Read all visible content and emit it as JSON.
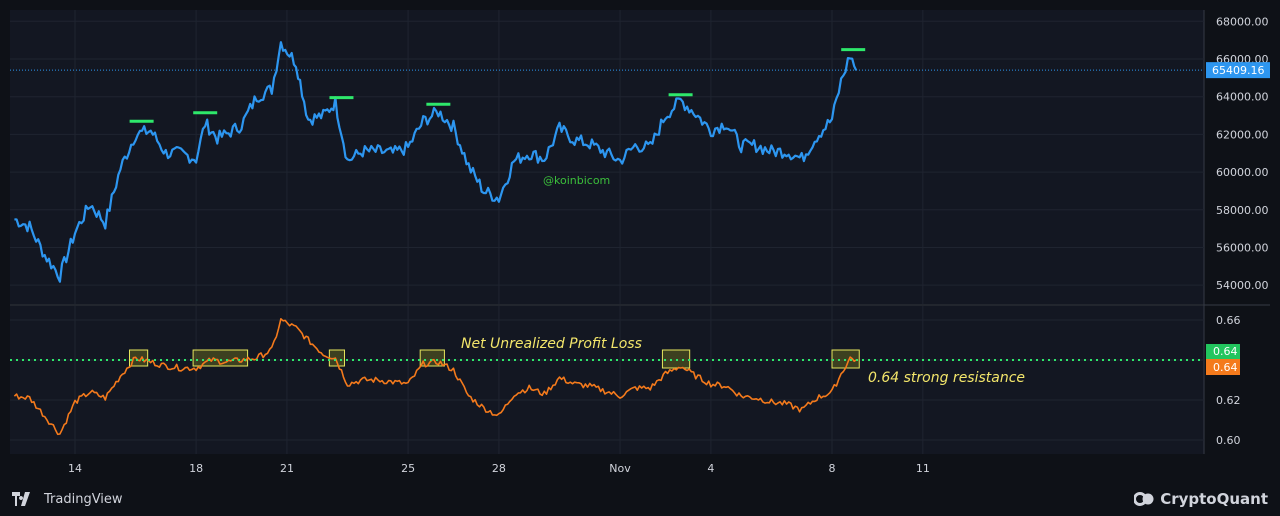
{
  "chart_data": [
    {
      "type": "line",
      "panel": "price",
      "watermark": "@koinbicom",
      "x_ticks": [
        "14",
        "18",
        "21",
        "25",
        "28",
        "Nov",
        "4",
        "8",
        "11"
      ],
      "y_ticks": [
        "68000.00",
        "66000.00",
        "64000.00",
        "62000.00",
        "60000.00",
        "58000.00",
        "56000.00",
        "54000.00"
      ],
      "ylim": [
        53000,
        68600
      ],
      "last_value": 65409.16,
      "last_value_label": "65409.16",
      "series": [
        {
          "color": "#2d96f0",
          "points": [
            [
              "Oct 12",
              57500
            ],
            [
              "Oct 12.5",
              57100
            ],
            [
              "Oct 13",
              55600
            ],
            [
              "Oct 13.5",
              54500
            ],
            [
              "Oct 14",
              56800
            ],
            [
              "Oct 14.5",
              58300
            ],
            [
              "Oct 15",
              57300
            ],
            [
              "Oct 15.5",
              60200
            ],
            [
              "Oct 16",
              62000
            ],
            [
              "Oct 16.5",
              62200
            ],
            [
              "Oct 17",
              61000
            ],
            [
              "Oct 17.5",
              61000
            ],
            [
              "Oct 18",
              60700
            ],
            [
              "Oct 18.3",
              62600
            ],
            [
              "Oct 18.7",
              61800
            ],
            [
              "Oct 19",
              62000
            ],
            [
              "Oct 19.5",
              62500
            ],
            [
              "Oct 20",
              64000
            ],
            [
              "Oct 20.5",
              64400
            ],
            [
              "Oct 20.8",
              66900
            ],
            [
              "Oct 21.3",
              65800
            ],
            [
              "Oct 21.7",
              62800
            ],
            [
              "Oct 22.2",
              63000
            ],
            [
              "Oct 22.6",
              63700
            ],
            [
              "Oct 23",
              60600
            ],
            [
              "Oct 23.5",
              61100
            ],
            [
              "Oct 24",
              61100
            ],
            [
              "Oct 24.5",
              61000
            ],
            [
              "Oct 25",
              61300
            ],
            [
              "Oct 25.5",
              62700
            ],
            [
              "Oct 26",
              63200
            ],
            [
              "Oct 26.5",
              62400
            ],
            [
              "Oct 27",
              60300
            ],
            [
              "Oct 27.5",
              59000
            ],
            [
              "Oct 28",
              58600
            ],
            [
              "Oct 28.5",
              60600
            ],
            [
              "Oct 29",
              61000
            ],
            [
              "Oct 29.5",
              60700
            ],
            [
              "Oct 30",
              62300
            ],
            [
              "Oct 30.5",
              61700
            ],
            [
              "Oct 31",
              61500
            ],
            [
              "Nov 1",
              60600
            ],
            [
              "Nov 1.5",
              61400
            ],
            [
              "Nov 2",
              61300
            ],
            [
              "Nov 2.5",
              63000
            ],
            [
              "Nov 3",
              63800
            ],
            [
              "Nov 3.5",
              63100
            ],
            [
              "Nov 4",
              62200
            ],
            [
              "Nov 4.5",
              62600
            ],
            [
              "Nov 5",
              61400
            ],
            [
              "Nov 5.5",
              61400
            ],
            [
              "Nov 6",
              61100
            ],
            [
              "Nov 6.5",
              61100
            ],
            [
              "Nov 7",
              60700
            ],
            [
              "Nov 7.5",
              61900
            ],
            [
              "Nov 8",
              62800
            ],
            [
              "Nov 8.3",
              64800
            ],
            [
              "Nov 8.6",
              66200
            ],
            [
              "Nov 8.8",
              65400
            ]
          ]
        }
      ],
      "resistance_marks": [
        {
          "x": "Oct 16.2",
          "y": 62700,
          "color": "#2ee86b"
        },
        {
          "x": "Oct 18.3",
          "y": 63150,
          "color": "#2ee86b"
        },
        {
          "x": "Oct 22.8",
          "y": 63950,
          "color": "#2ee86b"
        },
        {
          "x": "Oct 26",
          "y": 63600,
          "color": "#2ee86b"
        },
        {
          "x": "Nov 3",
          "y": 64100,
          "color": "#2ee86b"
        },
        {
          "x": "Nov 8.7",
          "y": 66500,
          "color": "#2ee86b"
        }
      ]
    },
    {
      "type": "line",
      "panel": "nupl",
      "title": "Net Unrealized Profit Loss",
      "annotation": "0.64 strong resistance",
      "y_ticks": [
        "0.66",
        "0.64",
        "0.62",
        "0.60"
      ],
      "ylim": [
        0.593,
        0.667
      ],
      "resistance_level": 0.64,
      "resistance_label": "0.64",
      "last_value_label": "0.64",
      "series": [
        {
          "color": "#f47a1c",
          "points": [
            [
              "Oct 12",
              0.622
            ],
            [
              "Oct 12.5",
              0.621
            ],
            [
              "Oct 13",
              0.612
            ],
            [
              "Oct 13.5",
              0.603
            ],
            [
              "Oct 14",
              0.619
            ],
            [
              "Oct 14.5",
              0.624
            ],
            [
              "Oct 15",
              0.621
            ],
            [
              "Oct 15.5",
              0.632
            ],
            [
              "Oct 16",
              0.641
            ],
            [
              "Oct 16.5",
              0.639
            ],
            [
              "Oct 17",
              0.637
            ],
            [
              "Oct 17.5",
              0.636
            ],
            [
              "Oct 18",
              0.636
            ],
            [
              "Oct 18.5",
              0.64
            ],
            [
              "Oct 19",
              0.639
            ],
            [
              "Oct 19.5",
              0.64
            ],
            [
              "Oct 20",
              0.641
            ],
            [
              "Oct 20.5",
              0.645
            ],
            [
              "Oct 20.8",
              0.66
            ],
            [
              "Oct 21.3",
              0.656
            ],
            [
              "Oct 21.7",
              0.65
            ],
            [
              "Oct 22.2",
              0.643
            ],
            [
              "Oct 22.6",
              0.641
            ],
            [
              "Oct 23",
              0.628
            ],
            [
              "Oct 23.5",
              0.63
            ],
            [
              "Oct 24",
              0.63
            ],
            [
              "Oct 24.5",
              0.629
            ],
            [
              "Oct 25",
              0.628
            ],
            [
              "Oct 25.5",
              0.638
            ],
            [
              "Oct 26",
              0.639
            ],
            [
              "Oct 26.5",
              0.635
            ],
            [
              "Oct 27",
              0.622
            ],
            [
              "Oct 27.5",
              0.616
            ],
            [
              "Oct 28",
              0.612
            ],
            [
              "Oct 28.5",
              0.623
            ],
            [
              "Oct 29",
              0.626
            ],
            [
              "Oct 29.5",
              0.623
            ],
            [
              "Oct 30",
              0.631
            ],
            [
              "Oct 30.5",
              0.628
            ],
            [
              "Oct 31",
              0.627
            ],
            [
              "Nov 1",
              0.622
            ],
            [
              "Nov 1.5",
              0.626
            ],
            [
              "Nov 2",
              0.626
            ],
            [
              "Nov 2.5",
              0.633
            ],
            [
              "Nov 3",
              0.637
            ],
            [
              "Nov 3.5",
              0.632
            ],
            [
              "Nov 4",
              0.628
            ],
            [
              "Nov 4.5",
              0.627
            ],
            [
              "Nov 5",
              0.622
            ],
            [
              "Nov 5.5",
              0.621
            ],
            [
              "Nov 6",
              0.619
            ],
            [
              "Nov 6.5",
              0.618
            ],
            [
              "Nov 7",
              0.615
            ],
            [
              "Nov 7.5",
              0.621
            ],
            [
              "Nov 8",
              0.624
            ],
            [
              "Nov 8.3",
              0.633
            ],
            [
              "Nov 8.6",
              0.641
            ],
            [
              "Nov 8.8",
              0.64
            ]
          ]
        }
      ],
      "highlight_boxes": [
        {
          "x_start": "Oct 15.8",
          "x_end": "Oct 16.4",
          "y_low": 0.637,
          "y_high": 0.645
        },
        {
          "x_start": "Oct 17.9",
          "x_end": "Oct 19.7",
          "y_low": 0.637,
          "y_high": 0.645
        },
        {
          "x_start": "Oct 22.4",
          "x_end": "Oct 22.9",
          "y_low": 0.637,
          "y_high": 0.645
        },
        {
          "x_start": "Oct 25.4",
          "x_end": "Oct 26.2",
          "y_low": 0.637,
          "y_high": 0.645
        },
        {
          "x_start": "Nov 2.4",
          "x_end": "Nov 3.3",
          "y_low": 0.636,
          "y_high": 0.645
        },
        {
          "x_start": "Nov 8.0",
          "x_end": "Nov 8.9",
          "y_low": 0.636,
          "y_high": 0.645
        }
      ]
    }
  ],
  "footer": {
    "left_brand": "TradingView",
    "right_brand": "CryptoQuant"
  },
  "colors": {
    "background": "#0e1117",
    "plot_bg": "#131722",
    "grid": "#1f2430",
    "axis_text": "#d1d4dc",
    "price_line": "#2d96f0",
    "nupl_line": "#f47a1c",
    "resistance": "#2ee86b",
    "annotation": "#f3e66b",
    "box_stroke": "#e6e65c",
    "box_fill": "rgba(140,140,30,0.35)",
    "watermark": "#3bbf3b"
  }
}
